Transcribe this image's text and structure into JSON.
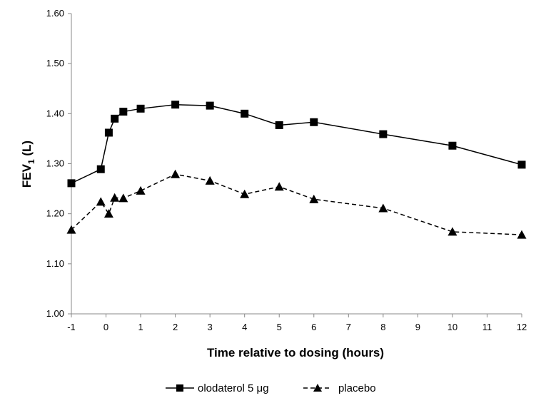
{
  "chart_data": {
    "type": "line",
    "xlabel": "Time relative to dosing (hours)",
    "ylabel_main": "FEV",
    "ylabel_sub": "1",
    "ylabel_suffix": " (L)",
    "xlim": [
      -1,
      12
    ],
    "ylim": [
      1.0,
      1.6
    ],
    "x_ticks": [
      -1,
      0,
      1,
      2,
      3,
      4,
      5,
      6,
      7,
      8,
      9,
      10,
      11,
      12
    ],
    "y_ticks": [
      "1.00",
      "1.10",
      "1.20",
      "1.30",
      "1.40",
      "1.50",
      "1.60"
    ],
    "grid": false,
    "legend_position": "bottom",
    "series": [
      {
        "name": "olodaterol 5 μg",
        "marker": "square",
        "line": "solid",
        "color": "#000000",
        "points": [
          [
            -1,
            1.261
          ],
          [
            -0.15,
            1.289
          ],
          [
            0.08,
            1.362
          ],
          [
            0.25,
            1.39
          ],
          [
            0.5,
            1.404
          ],
          [
            1,
            1.41
          ],
          [
            2,
            1.418
          ],
          [
            3,
            1.416
          ],
          [
            4,
            1.4
          ],
          [
            5,
            1.377
          ],
          [
            6,
            1.383
          ],
          [
            8,
            1.359
          ],
          [
            10,
            1.336
          ],
          [
            12,
            1.298
          ]
        ]
      },
      {
        "name": "placebo",
        "marker": "triangle",
        "line": "dashed",
        "color": "#000000",
        "points": [
          [
            -1,
            1.168
          ],
          [
            -0.15,
            1.224
          ],
          [
            0.08,
            1.2
          ],
          [
            0.25,
            1.232
          ],
          [
            0.5,
            1.231
          ],
          [
            1,
            1.246
          ],
          [
            2,
            1.279
          ],
          [
            3,
            1.266
          ],
          [
            4,
            1.239
          ],
          [
            5,
            1.254
          ],
          [
            6,
            1.229
          ],
          [
            8,
            1.211
          ],
          [
            10,
            1.164
          ],
          [
            12,
            1.158
          ]
        ]
      }
    ]
  }
}
